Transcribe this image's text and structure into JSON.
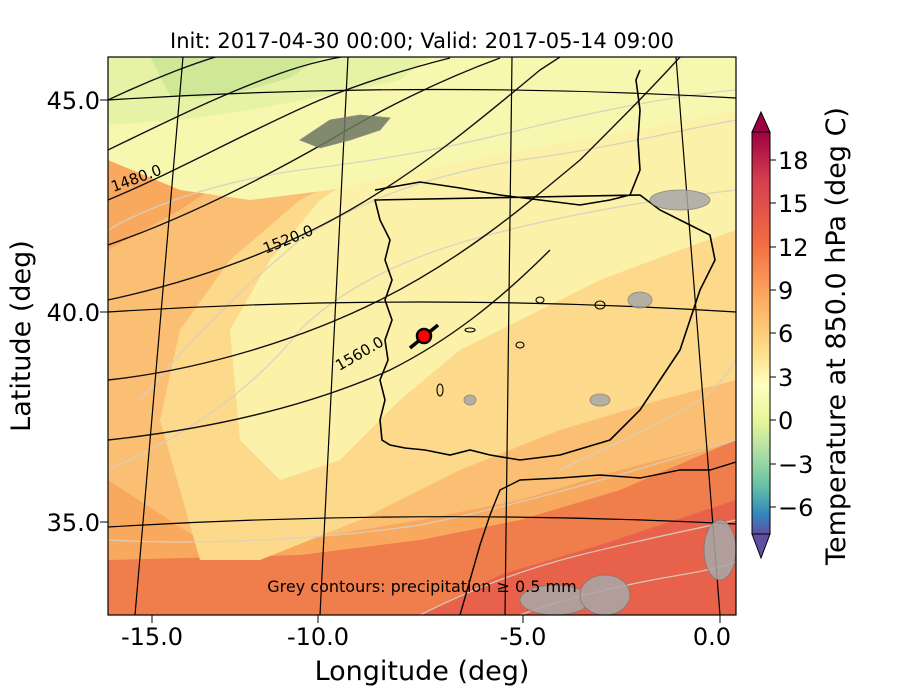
{
  "title": "Init: 2017-04-30 00:00; Valid: 2017-05-14 09:00",
  "axes": {
    "xlabel": "Longitude (deg)",
    "ylabel": "Latitude (deg)",
    "x_ticks": [
      "-15.0",
      "-10.0",
      "-5.0",
      "0.0"
    ],
    "y_ticks": [
      "45.0",
      "40.0",
      "35.0"
    ]
  },
  "colorbar": {
    "label": "Temperature at 850.0 hPa (deg C)",
    "ticks": [
      "18",
      "15",
      "12",
      "9",
      "6",
      "3",
      "0",
      "−3",
      "−6"
    ]
  },
  "contour_labels": [
    "1480.0",
    "1520.0",
    "1560.0"
  ],
  "note": "Grey contours: precipitation ≥ 0.5 mm",
  "marker": {
    "icon": "red-location-marker-icon",
    "color": "#ff0000"
  },
  "colors": {
    "warm": "#e86a44",
    "mid": "#fbc97a",
    "cool": "#fbfbb6",
    "green": "#c8e69a"
  }
}
